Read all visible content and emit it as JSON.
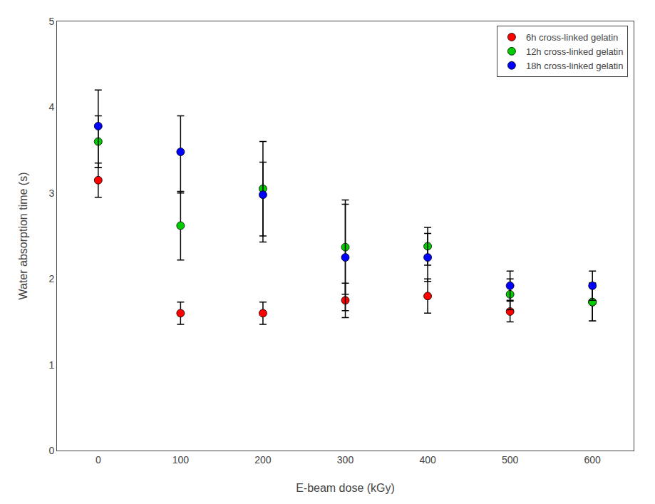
{
  "chart_data": {
    "type": "scatter",
    "x_label": "E-beam dose (kGy)",
    "y_label": "Water absorption time (s)",
    "x": [
      0,
      100,
      200,
      300,
      400,
      500,
      600
    ],
    "series": [
      {
        "name": "6h cross-linked gelatin",
        "color": "#FF0000",
        "values": [
          3.15,
          1.6,
          1.6,
          1.75,
          1.8,
          1.62,
          1.73
        ],
        "error_minus": [
          0.2,
          0.13,
          0.13,
          0.2,
          0.2,
          0.12,
          0.22
        ],
        "error_plus": [
          0.2,
          0.13,
          0.13,
          0.2,
          0.2,
          0.12,
          0.22
        ]
      },
      {
        "name": "12h cross-linked gelatin",
        "color": "#00CC00",
        "values": [
          3.6,
          2.62,
          3.05,
          2.37,
          2.38,
          1.82,
          1.73
        ],
        "error_minus": [
          0.3,
          0.4,
          0.55,
          0.55,
          0.22,
          0.18,
          0.22
        ],
        "error_plus": [
          0.3,
          0.4,
          0.55,
          0.55,
          0.22,
          0.18,
          0.22
        ]
      },
      {
        "name": "18h cross-linked gelatin",
        "color": "#0000FF",
        "values": [
          3.78,
          3.48,
          2.98,
          2.25,
          2.25,
          1.92,
          1.92
        ],
        "error_minus": [
          0.48,
          0.48,
          0.55,
          0.62,
          0.28,
          0.17,
          0.17
        ],
        "error_plus": [
          0.42,
          0.42,
          0.38,
          0.62,
          0.28,
          0.17,
          0.17
        ]
      }
    ],
    "xlim": [
      -50,
      650
    ],
    "xticks": [
      0,
      100,
      200,
      300,
      400,
      500,
      600
    ],
    "ylim": [
      0,
      5
    ],
    "yticks": [
      0,
      1,
      2,
      3,
      4,
      5
    ],
    "marker": "circle",
    "legend": "upper right",
    "grid": false
  }
}
